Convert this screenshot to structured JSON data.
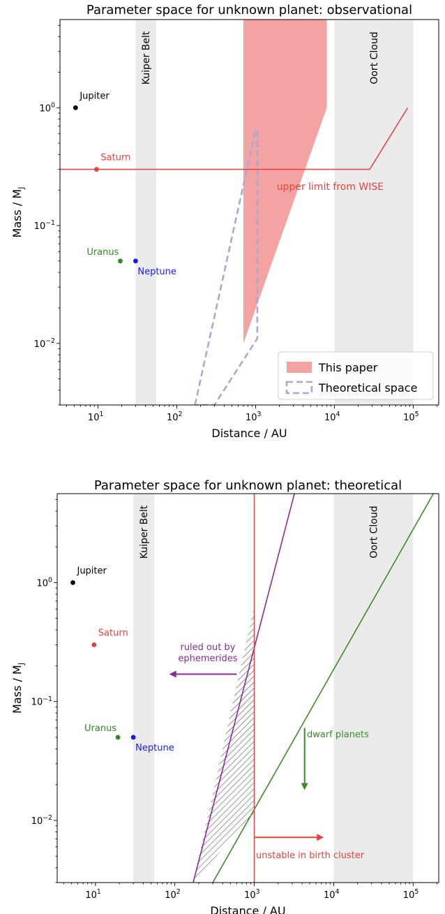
{
  "chart_data": [
    {
      "type": "scatter",
      "title": "Parameter space for unknown planet: observational",
      "xlabel": "Distance / AU",
      "ylabel_main": "Mass / M",
      "ylabel_sub": "J",
      "x_scale": "log",
      "y_scale": "log",
      "xlim": [
        3.3,
        210000
      ],
      "ylim": [
        0.003,
        5.6
      ],
      "x_ticks": [
        {
          "value": 10,
          "base": "10",
          "exp": "1"
        },
        {
          "value": 100,
          "base": "10",
          "exp": "2"
        },
        {
          "value": 1000,
          "base": "10",
          "exp": "3"
        },
        {
          "value": 10000,
          "base": "10",
          "exp": "4"
        },
        {
          "value": 100000,
          "base": "10",
          "exp": "5"
        }
      ],
      "y_ticks": [
        {
          "value": 0.01,
          "base": "10",
          "exp": "−2"
        },
        {
          "value": 0.1,
          "base": "10",
          "exp": "−1"
        },
        {
          "value": 1,
          "base": "10",
          "exp": "0"
        }
      ],
      "bands": [
        {
          "label": "Kuiper Belt",
          "x0": 30,
          "x1": 55,
          "color": "#ebebeb"
        },
        {
          "label": "Oort Cloud",
          "x0": 10000,
          "x1": 100000,
          "color": "#ebebeb"
        }
      ],
      "planets": [
        {
          "name": "Jupiter",
          "x": 5.2,
          "y": 1.0,
          "color": "#000000",
          "label_pos": "above-right"
        },
        {
          "name": "Saturn",
          "x": 9.6,
          "y": 0.3,
          "color": "#e8413a",
          "label_pos": "above-right"
        },
        {
          "name": "Uranus",
          "x": 19.2,
          "y": 0.05,
          "color": "#2e8b22",
          "label_pos": "above-left"
        },
        {
          "name": "Neptune",
          "x": 30,
          "y": 0.05,
          "color": "#1a1aee",
          "label_pos": "below-right"
        }
      ],
      "wise_line": {
        "x": [
          3.3,
          28000,
          85000
        ],
        "y": [
          0.3,
          0.3,
          1.0
        ],
        "color": "#e8413a",
        "label": "upper limit from WISE",
        "label_x": 1850,
        "label_y": 0.2
      },
      "shaded_region": {
        "name": "This paper",
        "x": [
          700,
          8000,
          8000,
          700
        ],
        "y": [
          5.6,
          5.6,
          1.0,
          0.01
        ],
        "color": "#f4a3a3"
      },
      "dashed_region": {
        "name": "Theoretical space",
        "x": [
          170,
          1000,
          1050,
          1050,
          300,
          170
        ],
        "y": [
          0.003,
          0.65,
          0.62,
          0.011,
          0.003,
          0.003
        ],
        "color": "#a8a8d4"
      },
      "legend": {
        "placement": "lower-right",
        "entries": [
          {
            "name": "This paper",
            "kind": "fill",
            "color": "#f4a3a3"
          },
          {
            "name": "Theoretical space",
            "kind": "dashed",
            "color": "#a8a8d4"
          }
        ]
      }
    },
    {
      "type": "line",
      "title": "Parameter space for unknown planet: theoretical",
      "xlabel": "Distance / AU",
      "ylabel_main": "Mass / M",
      "ylabel_sub": "J",
      "x_scale": "log",
      "y_scale": "log",
      "xlim": [
        3.3,
        210000
      ],
      "ylim": [
        0.003,
        5.6
      ],
      "x_ticks": [
        {
          "value": 10,
          "base": "10",
          "exp": "1"
        },
        {
          "value": 100,
          "base": "10",
          "exp": "2"
        },
        {
          "value": 1000,
          "base": "10",
          "exp": "3"
        },
        {
          "value": 10000,
          "base": "10",
          "exp": "4"
        },
        {
          "value": 100000,
          "base": "10",
          "exp": "5"
        }
      ],
      "y_ticks": [
        {
          "value": 0.01,
          "base": "10",
          "exp": "−2"
        },
        {
          "value": 0.1,
          "base": "10",
          "exp": "−1"
        },
        {
          "value": 1,
          "base": "10",
          "exp": "0"
        }
      ],
      "bands": [
        {
          "label": "Kuiper Belt",
          "x0": 30,
          "x1": 55,
          "color": "#ebebeb"
        },
        {
          "label": "Oort Cloud",
          "x0": 10000,
          "x1": 100000,
          "color": "#ebebeb"
        }
      ],
      "planets": [
        {
          "name": "Jupiter",
          "x": 5.2,
          "y": 1.0,
          "color": "#000000",
          "label_pos": "above-right"
        },
        {
          "name": "Saturn",
          "x": 9.6,
          "y": 0.3,
          "color": "#e8413a",
          "label_pos": "above-right"
        },
        {
          "name": "Uranus",
          "x": 19.2,
          "y": 0.05,
          "color": "#2e8b22",
          "label_pos": "above-left"
        },
        {
          "name": "Neptune",
          "x": 30,
          "y": 0.05,
          "color": "#1a1aee",
          "label_pos": "below-right"
        }
      ],
      "lines": [
        {
          "name": "ephemerides",
          "x": [
            170,
            3200
          ],
          "y": [
            0.003,
            5.6
          ],
          "color": "#8a2a9a"
        },
        {
          "name": "dwarf",
          "x": [
            300,
            180000
          ],
          "y": [
            0.003,
            5.6
          ],
          "color": "#3a8c2a"
        },
        {
          "name": "birth-cluster",
          "x": [
            1000,
            1000
          ],
          "y": [
            0.003,
            5.6
          ],
          "color": "#e8413a"
        }
      ],
      "hatched_region": {
        "x": [
          170,
          1000,
          1000,
          170
        ],
        "y": [
          0.003,
          0.0114,
          0.64,
          0.003
        ],
        "color": "#444444"
      },
      "arrows": [
        {
          "name": "ephemerides-arrow",
          "x0": 600,
          "y0": 0.17,
          "x1": 85,
          "y1": 0.17,
          "color": "#8a2a9a"
        },
        {
          "name": "dwarf-arrow",
          "x0": 4300,
          "y0": 0.06,
          "x1": 4300,
          "y1": 0.018,
          "color": "#3a8c2a"
        },
        {
          "name": "birth-cluster-arrow",
          "x0": 1000,
          "y0": 0.0072,
          "x1": 7500,
          "y1": 0.0072,
          "color": "#e8413a"
        }
      ],
      "annotations": [
        {
          "name": "ephemerides-label",
          "lines": [
            "ruled out by",
            "ephemerides"
          ],
          "x": 260,
          "y": 0.27,
          "color": "#8a2a9a",
          "anchor": "middle"
        },
        {
          "name": "dwarf-label",
          "lines": [
            "dwarf planets"
          ],
          "x": 4600,
          "y": 0.05,
          "color": "#3a8c2a",
          "anchor": "start"
        },
        {
          "name": "birth-cluster-label",
          "lines": [
            "unstable in birth cluster"
          ],
          "x": 1050,
          "y": 0.0048,
          "color": "#e8413a",
          "anchor": "start"
        }
      ]
    }
  ]
}
